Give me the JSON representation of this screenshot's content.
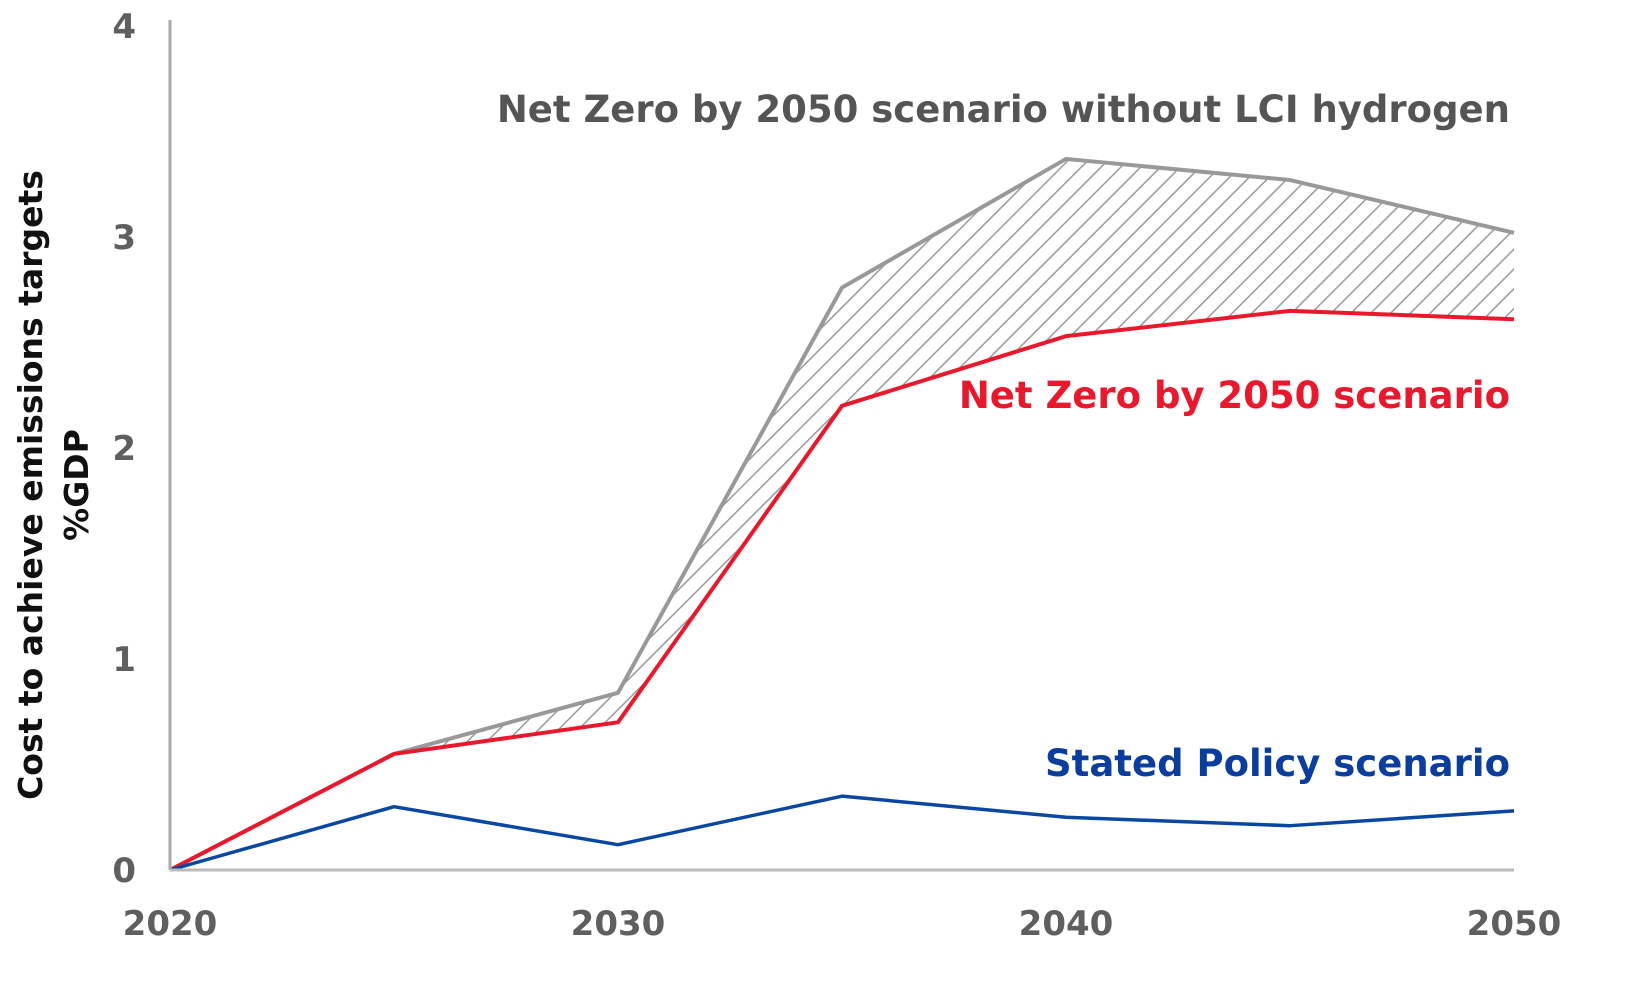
{
  "chart_data": {
    "type": "line",
    "title": "",
    "xlabel": "",
    "ylabel": [
      "Cost to achieve emissions targets",
      "%GDP"
    ],
    "x": [
      2020,
      2025,
      2030,
      2035,
      2040,
      2045,
      2050
    ],
    "xlim": [
      2020,
      2050
    ],
    "ylim": [
      0,
      4
    ],
    "xticks": [
      2020,
      2030,
      2040,
      2050
    ],
    "yticks": [
      0,
      1,
      2,
      3,
      4
    ],
    "grid": false,
    "legend": "inline labels",
    "series": [
      {
        "name": "Net Zero by 2050 scenario without LCI hydrogen",
        "values": [
          0,
          0.55,
          0.84,
          2.76,
          3.37,
          3.27,
          3.02
        ],
        "color": "#999999",
        "fill": "hatched band above Net Zero by 2050 scenario"
      },
      {
        "name": "Net Zero by 2050 scenario",
        "values": [
          0,
          0.55,
          0.7,
          2.2,
          2.53,
          2.65,
          2.61
        ],
        "color": "#e8192c"
      },
      {
        "name": "Stated Policy scenario",
        "values": [
          0,
          0.3,
          0.12,
          0.35,
          0.25,
          0.21,
          0.28
        ],
        "color": "#0a47a0"
      }
    ],
    "label_colors": {
      "Net Zero by 2050 scenario without LCI hydrogen": "#555555",
      "Net Zero by 2050 scenario": "#e8192c",
      "Stated Policy scenario": "#0a3d9c"
    }
  }
}
